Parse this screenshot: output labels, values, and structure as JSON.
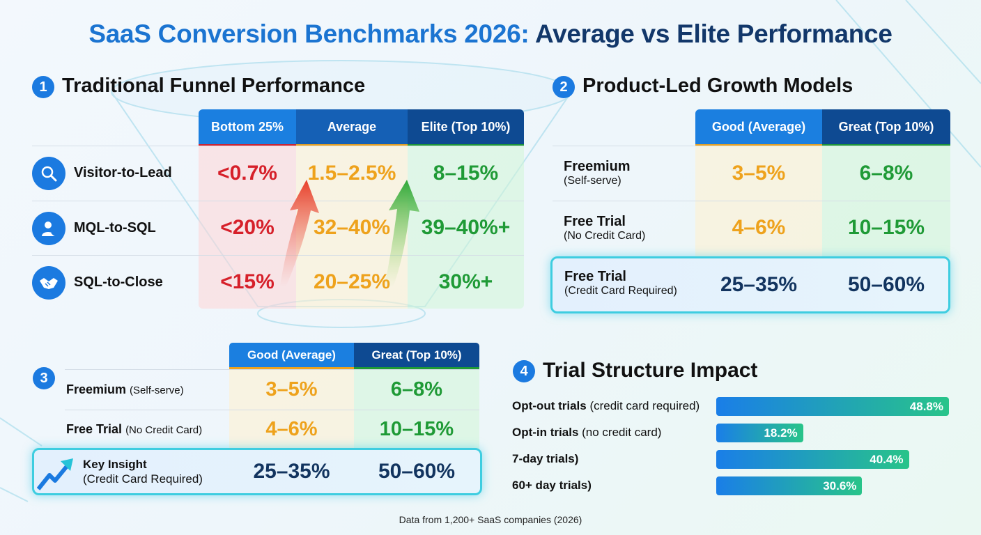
{
  "title": {
    "part1": "SaaS Conversion Benchmarks 2026:",
    "part2": "Average vs Elite Performance"
  },
  "section1": {
    "number": "1",
    "heading": "Traditional Funnel Performance",
    "columns": [
      "Bottom 25%",
      "Average",
      "Elite (Top 10%)"
    ],
    "rows": [
      {
        "label": "Visitor-to-Lead",
        "icon": "search-icon",
        "values": [
          "<0.7%",
          "1.5–2.5%",
          "8–15%"
        ]
      },
      {
        "label": "MQL-to-SQL",
        "icon": "user-check-icon",
        "values": [
          "<20%",
          "32–40%",
          "39–40%+"
        ]
      },
      {
        "label": "SQL-to-Close",
        "icon": "handshake-icon",
        "values": [
          "<15%",
          "20–25%",
          "30%+"
        ]
      }
    ]
  },
  "section2": {
    "number": "2",
    "heading": "Product-Led Growth Models",
    "columns": [
      "Good (Average)",
      "Great (Top 10%)"
    ],
    "rows": [
      {
        "label": "Freemium",
        "sublabel": "(Self-serve)",
        "values": [
          "3–5%",
          "6–8%"
        ]
      },
      {
        "label": "Free Trial",
        "sublabel": "(No Credit Card)",
        "values": [
          "4–6%",
          "10–15%"
        ]
      }
    ],
    "highlight": {
      "label": "Free Trial",
      "sublabel": "(Credit Card Required)",
      "values": [
        "25–35%",
        "50–60%"
      ]
    }
  },
  "section3": {
    "number": "3",
    "columns": [
      "Good (Average)",
      "Great (Top 10%)"
    ],
    "rows": [
      {
        "label": "Freemium",
        "sublabel": "(Self-serve)",
        "values": [
          "3–5%",
          "6–8%"
        ]
      },
      {
        "label": "Free Trial",
        "sublabel": "(No Credit Card)",
        "values": [
          "4–6%",
          "10–15%"
        ]
      }
    ],
    "highlight": {
      "label": "Key Insight",
      "sublabel": "(Credit Card Required)",
      "icon": "trend-up-icon",
      "values": [
        "25–35%",
        "50–60%"
      ]
    }
  },
  "chart_data": {
    "type": "bar",
    "orientation": "horizontal",
    "title": "Trial Structure Impact",
    "number": "4",
    "categories": [
      {
        "bold": "Opt-out trials",
        "rest": " (credit card required)"
      },
      {
        "bold": "Opt-in trials",
        "rest": " (no credit card)"
      },
      {
        "bold": "7-day trials)",
        "rest": ""
      },
      {
        "bold": "60+ day trials)",
        "rest": ""
      }
    ],
    "values": [
      48.8,
      18.2,
      40.4,
      30.6
    ],
    "value_labels": [
      "48.8%",
      "18.2%",
      "40.4%",
      "30.6%"
    ],
    "xlim": [
      0,
      50
    ],
    "grid": false,
    "colors": {
      "bar_start": "#1a7ee8",
      "bar_end": "#28c489"
    }
  },
  "footer": "Data from 1,200+ SaaS companies (2026)",
  "colors": {
    "bottom": "#d6202a",
    "average": "#eea21c",
    "elite": "#1f9a36",
    "highlight": "#12345f",
    "accent": "#1b7ae0"
  }
}
